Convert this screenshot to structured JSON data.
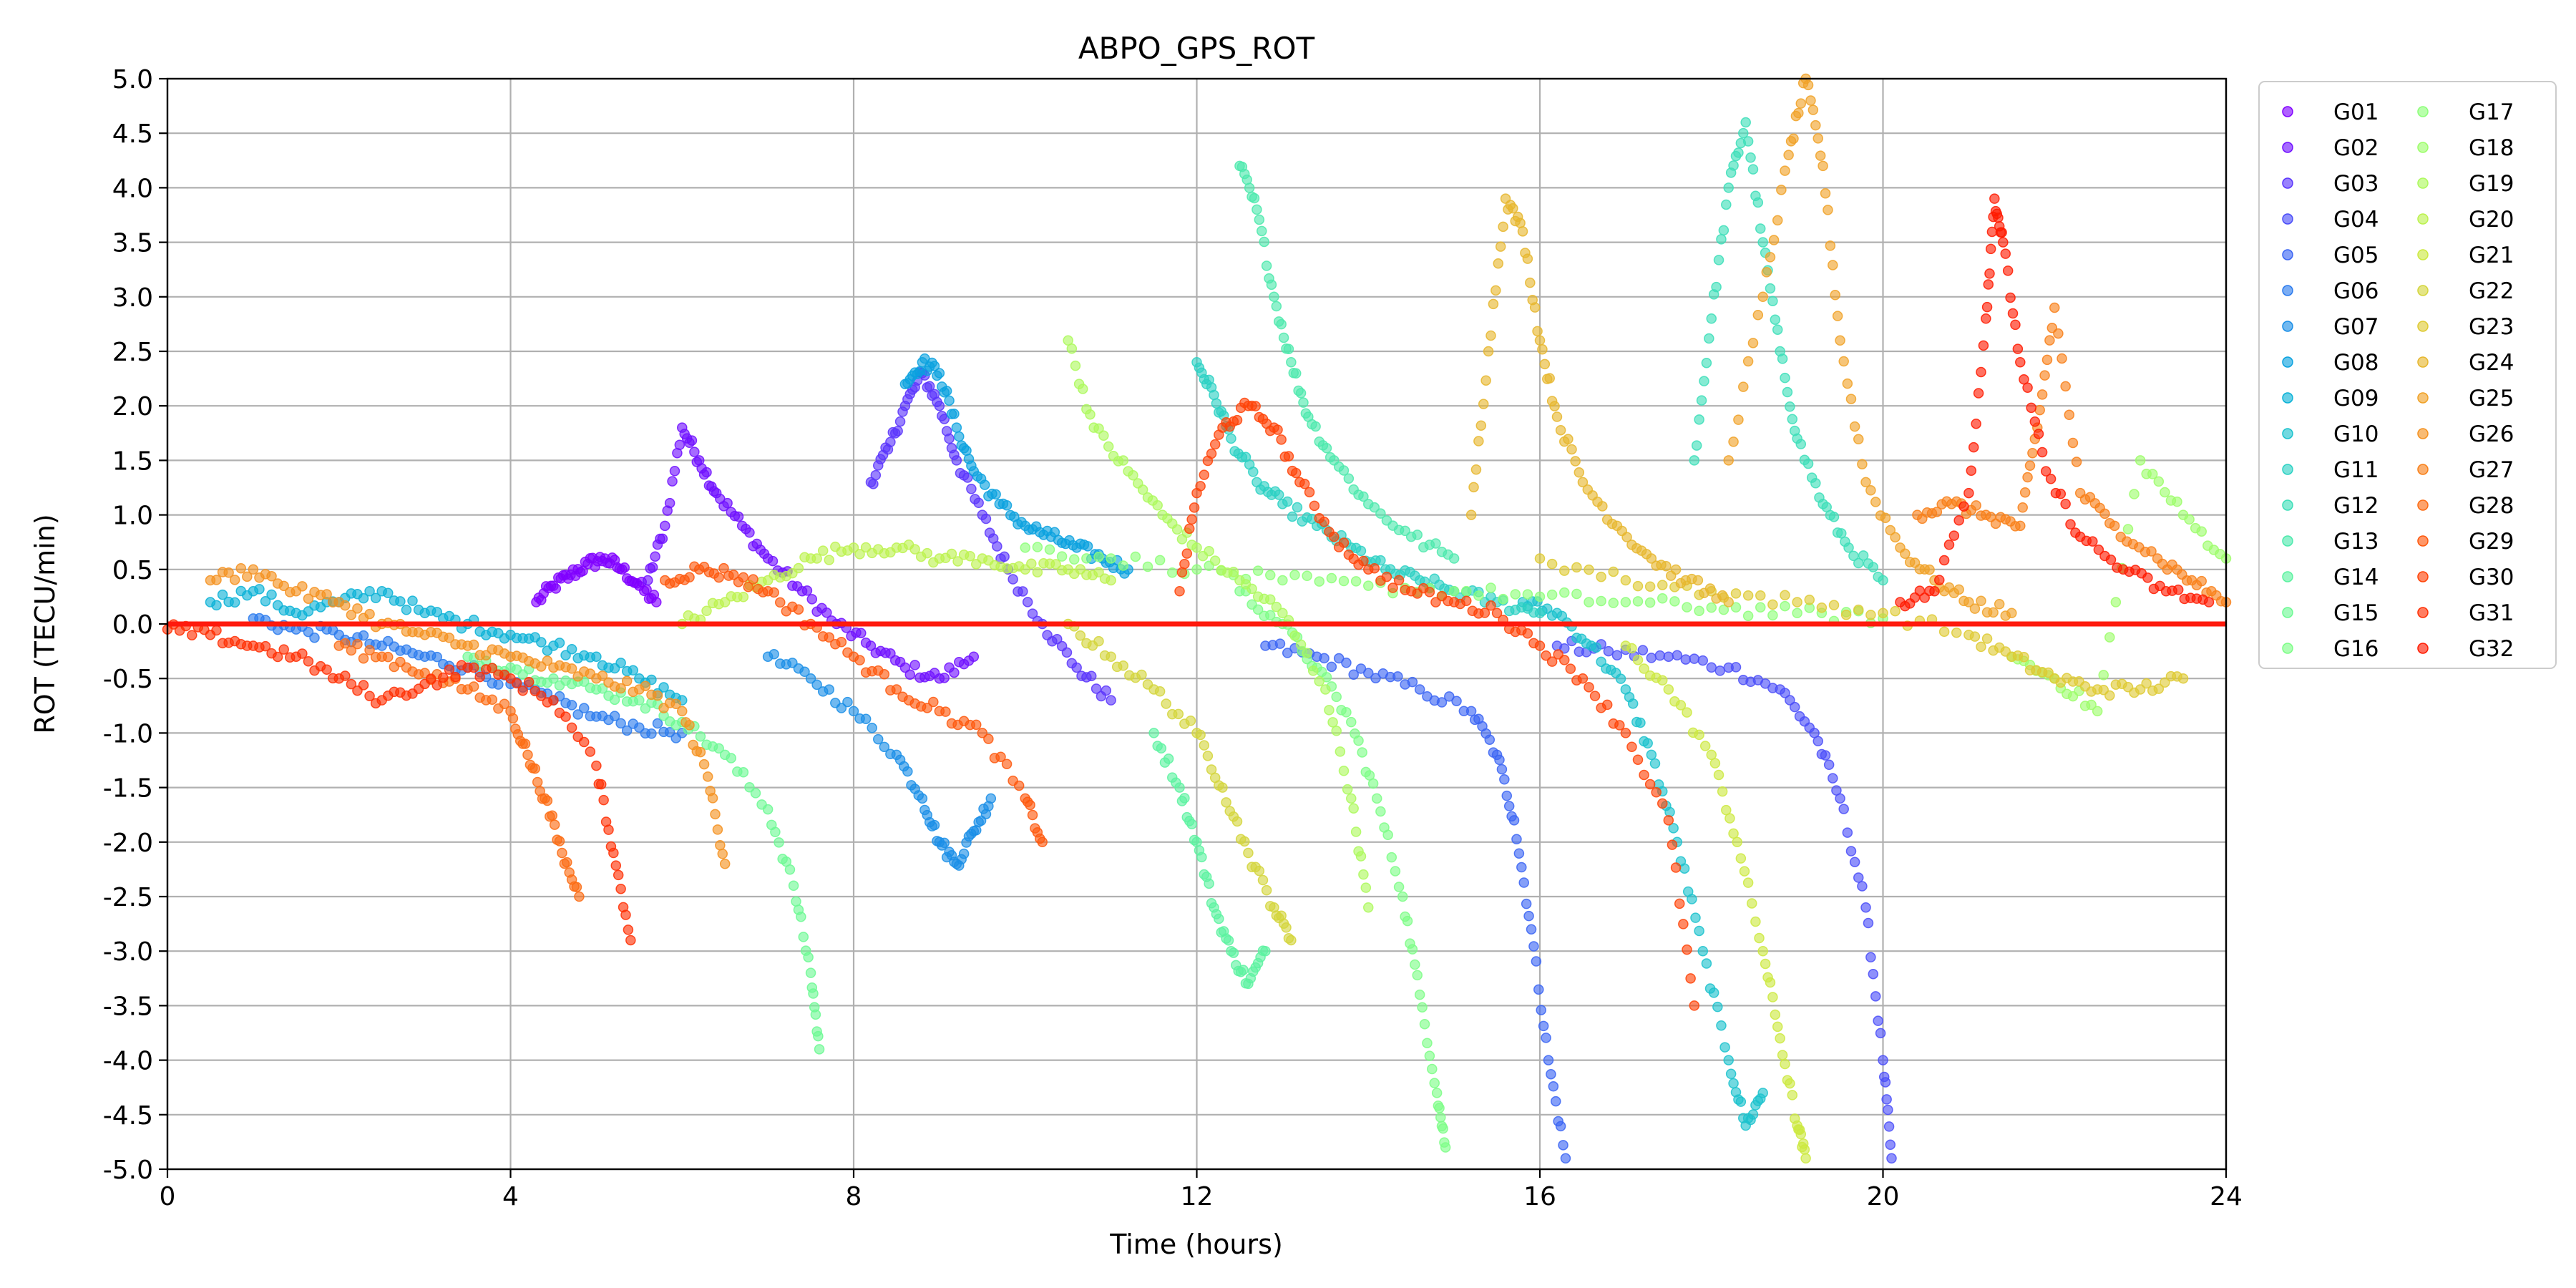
{
  "chart_data": {
    "type": "scatter",
    "title": "ABPO_GPS_ROT",
    "xlabel": "Time (hours)",
    "ylabel": "ROT (TECU/min)",
    "xlim": [
      0,
      24
    ],
    "ylim": [
      -5.0,
      5.0
    ],
    "xticks": [
      "0",
      "4",
      "8",
      "12",
      "16",
      "20",
      "24"
    ],
    "xtick_values": [
      0,
      4,
      8,
      12,
      16,
      20,
      24
    ],
    "yticks": [
      "5.0",
      "4.5",
      "4.0",
      "3.5",
      "3.0",
      "2.5",
      "2.0",
      "1.5",
      "1.0",
      "0.5",
      "0.0",
      "-0.5",
      "-1.0",
      "-1.5",
      "-2.0",
      "-2.5",
      "-3.0",
      "-3.5",
      "-4.0",
      "-4.5",
      "-5.0"
    ],
    "ytick_values": [
      5.0,
      4.5,
      4.0,
      3.5,
      3.0,
      2.5,
      2.0,
      1.5,
      1.0,
      0.5,
      0.0,
      -0.5,
      -1.0,
      -1.5,
      -2.0,
      -2.5,
      -3.0,
      -3.5,
      -4.0,
      -4.5,
      -5.0
    ],
    "grid": true,
    "legend_position": "outside-right",
    "reference_line": {
      "y": 0.0,
      "color": "#ff1a0d"
    },
    "series": [
      {
        "name": "G01",
        "color": "#8000ff",
        "x": [
          4.3,
          4.5,
          4.7,
          4.9,
          5.1,
          5.3,
          5.5,
          5.7
        ],
        "y": [
          0.2,
          0.35,
          0.45,
          0.55,
          0.6,
          0.5,
          0.35,
          0.2
        ]
      },
      {
        "name": "G02",
        "color": "#7010ff",
        "x": [
          5.6,
          5.8,
          6.0,
          6.2,
          6.4,
          6.7,
          7.0,
          7.4,
          7.8,
          8.2,
          8.6,
          9.0,
          9.4
        ],
        "y": [
          0.4,
          0.9,
          1.8,
          1.5,
          1.2,
          0.9,
          0.6,
          0.3,
          0.0,
          -0.2,
          -0.4,
          -0.5,
          -0.3
        ]
      },
      {
        "name": "G03",
        "color": "#5a35fc",
        "x": [
          8.2,
          8.4,
          8.6,
          8.8,
          9.0,
          9.2,
          9.5,
          9.8,
          10.2,
          10.6,
          11.0
        ],
        "y": [
          1.3,
          1.6,
          2.0,
          2.3,
          2.0,
          1.5,
          1.0,
          0.5,
          0.0,
          -0.4,
          -0.7
        ]
      },
      {
        "name": "G04",
        "color": "#4a4df8",
        "x": [
          16.2,
          16.8,
          17.5,
          18.2,
          18.8,
          19.2,
          19.5,
          19.8,
          20.0,
          20.1
        ],
        "y": [
          -0.2,
          -0.25,
          -0.3,
          -0.4,
          -0.6,
          -1.0,
          -1.6,
          -2.6,
          -4.0,
          -4.9
        ]
      },
      {
        "name": "G05",
        "color": "#3a64f3",
        "x": [
          12.8,
          13.4,
          14.0,
          14.6,
          15.2,
          15.5,
          15.7,
          15.9,
          16.1,
          16.3
        ],
        "y": [
          -0.2,
          -0.3,
          -0.45,
          -0.6,
          -0.8,
          -1.2,
          -1.8,
          -2.8,
          -4.0,
          -4.9
        ]
      },
      {
        "name": "G06",
        "color": "#2a7aed",
        "x": [
          1.0,
          1.5,
          2.0,
          2.5,
          3.0,
          3.5,
          4.0,
          4.5,
          5.0,
          5.5,
          6.0
        ],
        "y": [
          0.05,
          -0.05,
          -0.1,
          -0.2,
          -0.3,
          -0.4,
          -0.55,
          -0.7,
          -0.85,
          -0.95,
          -1.0
        ]
      },
      {
        "name": "G07",
        "color": "#1a8ee6",
        "x": [
          7.0,
          7.5,
          8.0,
          8.5,
          8.8,
          9.0,
          9.2,
          9.4,
          9.6
        ],
        "y": [
          -0.3,
          -0.5,
          -0.8,
          -1.2,
          -1.6,
          -2.0,
          -2.2,
          -1.9,
          -1.6
        ]
      },
      {
        "name": "G08",
        "color": "#0aa1df",
        "x": [
          8.6,
          8.8,
          9.0,
          9.2,
          9.4,
          9.7,
          10.0,
          10.3,
          10.6,
          10.9,
          11.2
        ],
        "y": [
          2.2,
          2.4,
          2.3,
          1.8,
          1.4,
          1.1,
          0.9,
          0.8,
          0.7,
          0.6,
          0.5
        ]
      },
      {
        "name": "G09",
        "color": "#0bb2d6",
        "x": [
          0.5,
          1.0,
          1.5,
          2.0,
          2.5,
          3.0,
          3.5,
          4.0,
          4.5,
          5.0,
          5.5,
          6.0
        ],
        "y": [
          0.2,
          0.3,
          0.1,
          0.2,
          0.3,
          0.1,
          0.0,
          -0.1,
          -0.2,
          -0.3,
          -0.5,
          -0.7
        ]
      },
      {
        "name": "G10",
        "color": "#1bc2cd",
        "x": [
          15.8,
          16.2,
          16.6,
          17.0,
          17.3,
          17.6,
          17.9,
          18.2,
          18.4,
          18.6
        ],
        "y": [
          0.2,
          0.1,
          -0.2,
          -0.6,
          -1.2,
          -2.0,
          -3.0,
          -4.0,
          -4.6,
          -4.3
        ]
      },
      {
        "name": "G11",
        "color": "#2cd1c3",
        "x": [
          12.0,
          12.2,
          12.4,
          12.7,
          13.0,
          13.4,
          13.8,
          14.2,
          14.6,
          15.0,
          15.5,
          16.0
        ],
        "y": [
          2.4,
          2.1,
          1.7,
          1.3,
          1.1,
          0.9,
          0.7,
          0.5,
          0.4,
          0.3,
          0.2,
          0.1
        ]
      },
      {
        "name": "G12",
        "color": "#3cdeb8",
        "x": [
          17.8,
          18.0,
          18.2,
          18.4,
          18.6,
          18.8,
          19.0,
          19.3,
          19.6,
          20.0
        ],
        "y": [
          1.5,
          2.8,
          4.0,
          4.6,
          3.5,
          2.5,
          1.7,
          1.1,
          0.7,
          0.4
        ]
      },
      {
        "name": "G13",
        "color": "#4ce9ac",
        "x": [
          12.5,
          12.7,
          12.9,
          13.1,
          13.3,
          13.6,
          14.0,
          14.5,
          15.0
        ],
        "y": [
          4.2,
          3.8,
          3.0,
          2.4,
          1.9,
          1.5,
          1.1,
          0.8,
          0.6
        ]
      },
      {
        "name": "G14",
        "color": "#5cf2a0",
        "x": [
          11.5,
          11.8,
          12.0,
          12.2,
          12.4,
          12.6,
          12.8
        ],
        "y": [
          -1.0,
          -1.5,
          -2.0,
          -2.6,
          -3.0,
          -3.3,
          -3.0
        ]
      },
      {
        "name": "G15",
        "color": "#6cf993",
        "x": [
          3.5,
          4.0,
          4.5,
          5.0,
          5.5,
          6.0,
          6.5,
          7.0,
          7.3,
          7.5,
          7.6
        ],
        "y": [
          -0.3,
          -0.4,
          -0.5,
          -0.6,
          -0.7,
          -0.9,
          -1.2,
          -1.7,
          -2.4,
          -3.2,
          -3.9
        ]
      },
      {
        "name": "G16",
        "color": "#7cfd86",
        "x": [
          12.5,
          13.0,
          13.4,
          13.8,
          14.1,
          14.4,
          14.6,
          14.8,
          14.9
        ],
        "y": [
          0.3,
          0.0,
          -0.4,
          -0.9,
          -1.6,
          -2.5,
          -3.4,
          -4.3,
          -4.8
        ]
      },
      {
        "name": "G17",
        "color": "#8cff78",
        "x": [
          10.0,
          11.0,
          12.0,
          13.0,
          14.0,
          15.0,
          16.0,
          17.0,
          18.0,
          19.0,
          20.0
        ],
        "y": [
          0.7,
          0.6,
          0.5,
          0.4,
          0.35,
          0.3,
          0.25,
          0.2,
          0.15,
          0.1,
          0.05
        ]
      },
      {
        "name": "G18",
        "color": "#9cfd6a",
        "x": [
          21.5,
          22.0,
          22.5,
          23.0,
          23.5,
          24.0
        ],
        "y": [
          -0.3,
          -0.5,
          -0.8,
          1.5,
          1.0,
          0.6
        ]
      },
      {
        "name": "G19",
        "color": "#acf95c",
        "x": [
          10.5,
          10.8,
          11.2,
          11.6,
          12.0,
          12.5,
          13.0,
          13.5,
          13.8,
          14.0
        ],
        "y": [
          2.6,
          1.8,
          1.4,
          1.0,
          0.7,
          0.4,
          0.1,
          -0.6,
          -1.6,
          -2.6
        ]
      },
      {
        "name": "G20",
        "color": "#bcf24e",
        "x": [
          6.0,
          6.5,
          7.0,
          7.5,
          8.0,
          8.5,
          9.0,
          9.5,
          10.0,
          10.5,
          11.0
        ],
        "y": [
          0.0,
          0.2,
          0.4,
          0.6,
          0.7,
          0.7,
          0.6,
          0.6,
          0.5,
          0.5,
          0.4
        ]
      },
      {
        "name": "G21",
        "color": "#cce93f",
        "x": [
          17.0,
          17.5,
          18.0,
          18.3,
          18.6,
          18.8,
          19.0,
          19.1
        ],
        "y": [
          -0.2,
          -0.6,
          -1.2,
          -2.0,
          -3.0,
          -3.8,
          -4.6,
          -4.9
        ]
      },
      {
        "name": "G22",
        "color": "#d3d53b",
        "x": [
          10.5,
          11.0,
          11.5,
          12.0,
          12.3,
          12.6,
          12.9,
          13.1
        ],
        "y": [
          0.0,
          -0.3,
          -0.6,
          -1.0,
          -1.5,
          -2.1,
          -2.6,
          -2.9
        ]
      },
      {
        "name": "G23",
        "color": "#deca33",
        "x": [
          16.0,
          17.0,
          18.0,
          19.0,
          20.0,
          21.0,
          21.5,
          22.0,
          22.5,
          23.0,
          23.5
        ],
        "y": [
          0.6,
          0.4,
          0.3,
          0.2,
          0.1,
          -0.1,
          -0.3,
          -0.5,
          -0.6,
          -0.6,
          -0.5
        ]
      },
      {
        "name": "G24",
        "color": "#e6b62d",
        "x": [
          15.2,
          15.4,
          15.6,
          15.8,
          16.0,
          16.2,
          16.5,
          16.9,
          17.3,
          17.7,
          18.2
        ],
        "y": [
          1.0,
          2.5,
          3.9,
          3.6,
          2.6,
          1.9,
          1.3,
          0.9,
          0.6,
          0.4,
          0.2
        ]
      },
      {
        "name": "G25",
        "color": "#f0a126",
        "x": [
          18.2,
          18.6,
          18.9,
          19.1,
          19.3,
          19.5,
          19.8,
          20.2,
          20.6,
          21.0,
          21.5
        ],
        "y": [
          1.5,
          3.0,
          4.3,
          5.0,
          4.2,
          2.6,
          1.3,
          0.7,
          0.4,
          0.2,
          0.1
        ]
      },
      {
        "name": "G26",
        "color": "#f4911f",
        "x": [
          0.5,
          1.0,
          1.5,
          2.0,
          2.5,
          3.0,
          3.5,
          4.0,
          4.5,
          5.0,
          5.5,
          6.0,
          6.3,
          6.5
        ],
        "y": [
          0.4,
          0.5,
          0.3,
          0.2,
          0.0,
          -0.1,
          -0.2,
          -0.3,
          -0.4,
          -0.5,
          -0.6,
          -0.8,
          -1.4,
          -2.2
        ]
      },
      {
        "name": "G27",
        "color": "#f87f18",
        "x": [
          20.4,
          20.8,
          21.2,
          21.6,
          21.8,
          22.0,
          22.3,
          22.7,
          23.2,
          23.6,
          24.0
        ],
        "y": [
          1.0,
          1.1,
          1.0,
          0.9,
          1.8,
          2.9,
          1.2,
          0.9,
          0.6,
          0.4,
          0.2
        ]
      },
      {
        "name": "G28",
        "color": "#fc6b12",
        "x": [
          2.0,
          2.5,
          3.0,
          3.5,
          4.0,
          4.2,
          4.4,
          4.6,
          4.8
        ],
        "y": [
          -0.2,
          -0.3,
          -0.45,
          -0.6,
          -0.8,
          -1.2,
          -1.6,
          -2.1,
          -2.5
        ]
      },
      {
        "name": "G29",
        "color": "#fe570c",
        "x": [
          5.8,
          6.2,
          6.6,
          7.0,
          7.5,
          8.0,
          8.5,
          9.0,
          9.5,
          10.0,
          10.2
        ],
        "y": [
          0.4,
          0.5,
          0.45,
          0.3,
          0.0,
          -0.3,
          -0.6,
          -0.8,
          -1.0,
          -1.6,
          -2.0
        ]
      },
      {
        "name": "G30",
        "color": "#ff4206",
        "x": [
          11.8,
          12.0,
          12.3,
          12.6,
          12.9,
          13.2,
          13.6,
          14.0,
          14.5,
          15.0,
          15.5,
          16.0,
          16.5,
          17.0,
          17.5,
          17.8
        ],
        "y": [
          0.3,
          1.2,
          1.8,
          2.0,
          1.8,
          1.3,
          0.8,
          0.5,
          0.3,
          0.2,
          0.1,
          -0.2,
          -0.5,
          -1.0,
          -1.8,
          -3.5
        ]
      },
      {
        "name": "G31",
        "color": "#ff2e02",
        "x": [
          0.0,
          0.5,
          1.0,
          1.5,
          2.0,
          2.5,
          3.0,
          3.5,
          4.0,
          4.5,
          5.0,
          5.2,
          5.4
        ],
        "y": [
          -0.05,
          -0.1,
          -0.2,
          -0.3,
          -0.5,
          -0.7,
          -0.55,
          -0.4,
          -0.5,
          -0.7,
          -1.3,
          -2.1,
          -2.9
        ]
      },
      {
        "name": "G32",
        "color": "#ff1a00",
        "x": [
          20.2,
          20.6,
          21.0,
          21.2,
          21.3,
          21.4,
          21.6,
          21.9,
          22.3,
          22.8,
          23.3,
          23.8
        ],
        "y": [
          0.2,
          0.3,
          1.2,
          2.8,
          3.9,
          3.5,
          2.4,
          1.4,
          0.8,
          0.5,
          0.3,
          0.2
        ]
      }
    ]
  }
}
